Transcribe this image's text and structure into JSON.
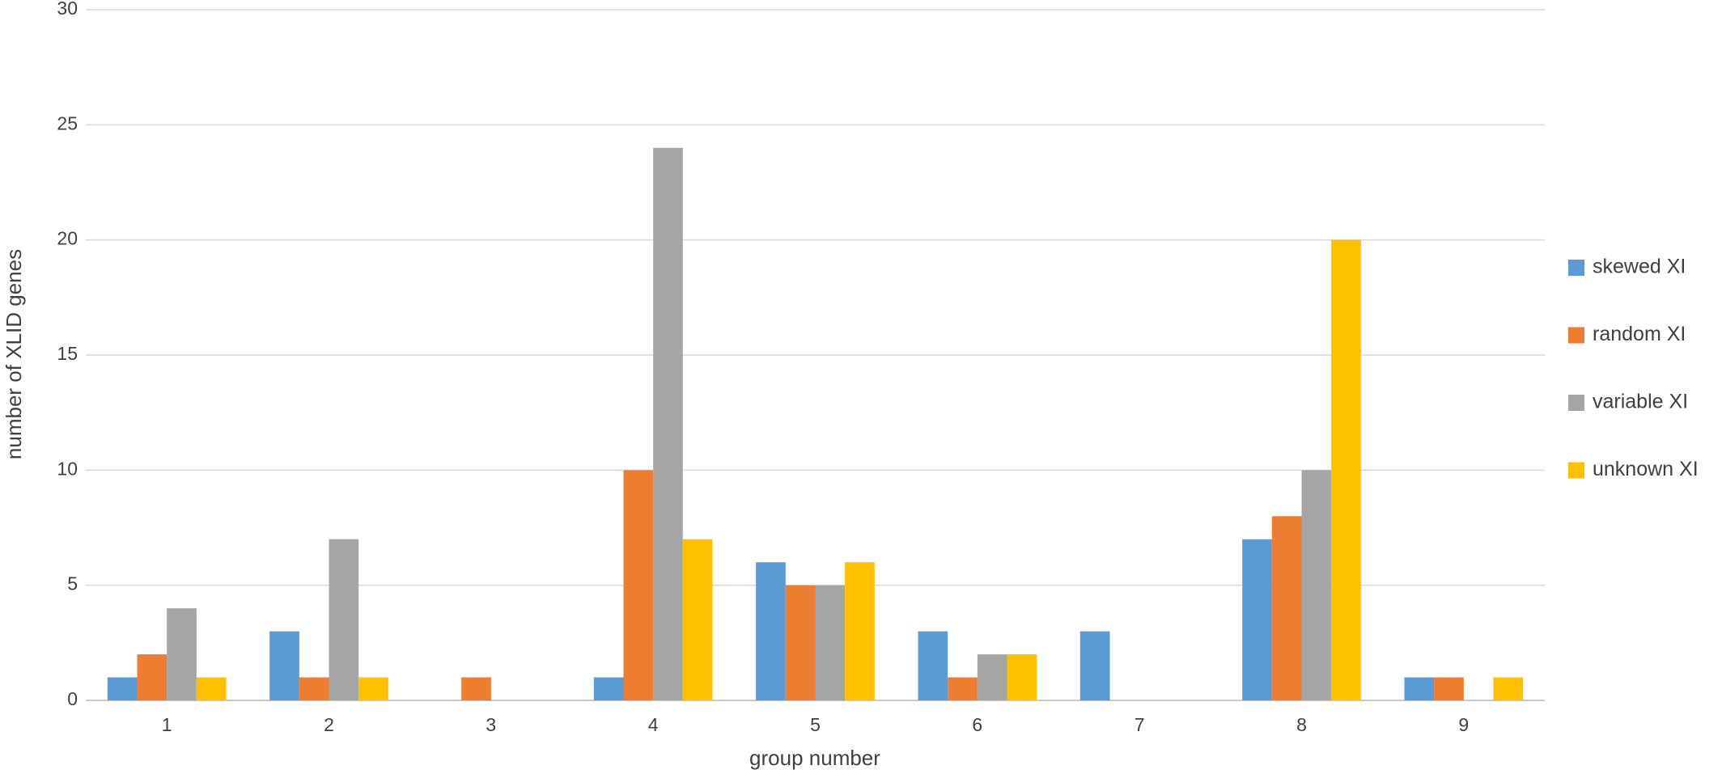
{
  "chart_data": {
    "type": "bar",
    "x_label": "group number",
    "y_label": "number of XLID genes",
    "categories": [
      "1",
      "2",
      "3",
      "4",
      "5",
      "6",
      "7",
      "8",
      "9"
    ],
    "series": [
      {
        "name": "skewed XI",
        "color": "#5b9bd5",
        "values": [
          1,
          3,
          0,
          1,
          6,
          3,
          3,
          7,
          1
        ]
      },
      {
        "name": "random XI",
        "color": "#ed7d31",
        "values": [
          2,
          1,
          1,
          10,
          5,
          1,
          0,
          8,
          1
        ]
      },
      {
        "name": "variable XI",
        "color": "#a5a5a5",
        "values": [
          4,
          7,
          0,
          24,
          5,
          2,
          0,
          10,
          0
        ]
      },
      {
        "name": "unknown XI",
        "color": "#ffc000",
        "values": [
          1,
          1,
          0,
          7,
          6,
          2,
          0,
          20,
          1
        ]
      }
    ],
    "ylim": [
      0,
      30
    ],
    "yticks": [
      0,
      5,
      10,
      15,
      20,
      25,
      30
    ],
    "grid": true,
    "legend": "right"
  }
}
